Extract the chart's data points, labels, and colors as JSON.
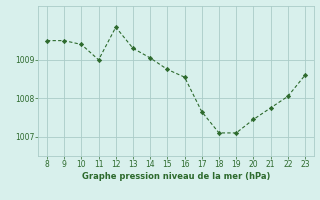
{
  "x": [
    8,
    9,
    10,
    11,
    12,
    13,
    14,
    15,
    16,
    17,
    18,
    19,
    20,
    21,
    22,
    23
  ],
  "y": [
    1009.5,
    1009.5,
    1009.4,
    1009.0,
    1009.85,
    1009.3,
    1009.05,
    1008.75,
    1008.55,
    1007.65,
    1007.1,
    1007.1,
    1007.45,
    1007.75,
    1008.05,
    1008.6
  ],
  "line_color": "#2d6a2d",
  "marker_color": "#2d6a2d",
  "bg_color": "#d8f0ec",
  "grid_color": "#aaccc8",
  "text_color": "#2d6a2d",
  "xlabel": "Graphe pression niveau de la mer (hPa)",
  "yticks": [
    1007,
    1008,
    1009
  ],
  "ylim": [
    1006.5,
    1010.4
  ],
  "xlim": [
    7.5,
    23.5
  ],
  "xticks": [
    8,
    9,
    10,
    11,
    12,
    13,
    14,
    15,
    16,
    17,
    18,
    19,
    20,
    21,
    22,
    23
  ]
}
